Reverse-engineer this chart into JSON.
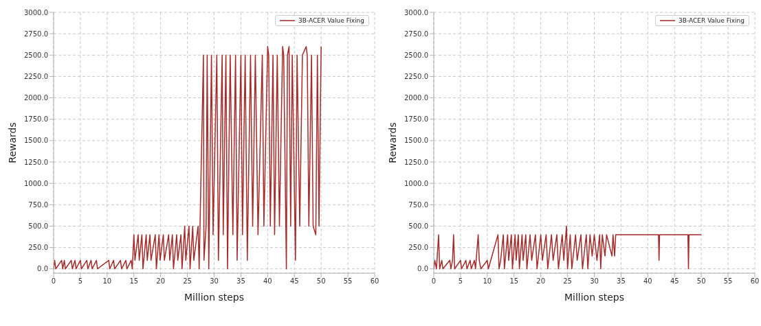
{
  "chart_data": [
    {
      "type": "line",
      "xlabel": "Million steps",
      "ylabel": "Rewards",
      "xlim": [
        0,
        60
      ],
      "xticks": [
        0,
        5,
        10,
        15,
        20,
        25,
        30,
        35,
        40,
        45,
        50,
        55,
        60
      ],
      "ylim": [
        -50,
        3000
      ],
      "yticks": [
        {
          "value": 0,
          "label": "0.0"
        },
        {
          "value": 250,
          "label": "250.0"
        },
        {
          "value": 500,
          "label": "500.0"
        },
        {
          "value": 750,
          "label": "750.0"
        },
        {
          "value": 1000,
          "label": "1000.0"
        },
        {
          "value": 1250,
          "label": "1250.0"
        },
        {
          "value": 1500,
          "label": "1500.0"
        },
        {
          "value": 1750,
          "label": "1750.0"
        },
        {
          "value": 2000,
          "label": "2000.0"
        },
        {
          "value": 2250,
          "label": "2250.0"
        },
        {
          "value": 2500,
          "label": "2500.0"
        },
        {
          "value": 2750,
          "label": "2750.0"
        },
        {
          "value": 3000,
          "label": "3000.0"
        }
      ],
      "grid": true,
      "legend": "top right",
      "line_style": "solid",
      "series": [
        {
          "name": "3B-ACER Value Fixing",
          "color": "#a52a2a",
          "x": [
            0,
            0.2,
            0.4,
            1.5,
            1.7,
            2,
            2.2,
            3.3,
            3.5,
            4,
            4.2,
            5,
            5.2,
            6.2,
            6.4,
            7,
            7.2,
            8,
            8.2,
            10.3,
            10.5,
            11.2,
            11.4,
            12.5,
            12.7,
            13.5,
            13.7,
            14.5,
            14.7,
            15,
            15.2,
            15.8,
            16,
            16.5,
            16.7,
            17.3,
            17.5,
            18,
            18.2,
            19,
            19.2,
            19.7,
            19.9,
            20.5,
            20.7,
            21.5,
            21.7,
            22.2,
            22.4,
            23,
            23.2,
            23.8,
            24,
            24.5,
            24.7,
            25.3,
            25.5,
            26,
            26.2,
            27,
            27.2,
            28,
            28.1,
            28.5,
            28.7,
            29,
            29.5,
            29.8,
            30.5,
            30.8,
            31.5,
            31.7,
            32.2,
            32.5,
            33,
            33.5,
            34,
            34.3,
            35,
            35.3,
            35.8,
            36.2,
            36.8,
            37.2,
            37.7,
            38.2,
            39,
            39.3,
            40,
            40.2,
            40.5,
            41,
            41.3,
            41.8,
            42.2,
            42.8,
            43,
            43.5,
            43.7,
            44,
            44.3,
            44.6,
            45.2,
            45.5,
            46,
            46.5,
            47.2,
            47.4,
            47.7,
            48.2,
            48.5,
            49,
            49.3,
            49.6,
            50
          ],
          "values": [
            0,
            100,
            0,
            100,
            0,
            100,
            0,
            100,
            0,
            100,
            0,
            100,
            0,
            100,
            0,
            100,
            0,
            100,
            0,
            100,
            0,
            100,
            0,
            100,
            0,
            100,
            0,
            100,
            0,
            400,
            100,
            400,
            100,
            400,
            0,
            400,
            100,
            400,
            100,
            400,
            0,
            400,
            100,
            400,
            100,
            400,
            100,
            400,
            0,
            400,
            100,
            400,
            0,
            500,
            100,
            500,
            0,
            500,
            100,
            500,
            0,
            2500,
            100,
            500,
            2500,
            0,
            2500,
            400,
            2500,
            100,
            2500,
            400,
            2500,
            0,
            2500,
            400,
            2500,
            100,
            2500,
            400,
            2500,
            100,
            2500,
            500,
            2500,
            400,
            2500,
            500,
            2600,
            2500,
            500,
            2500,
            400,
            2500,
            500,
            2600,
            2500,
            0,
            2500,
            2600,
            500,
            2500,
            100,
            2500,
            500,
            2500,
            2600,
            2500,
            500,
            2500,
            500,
            400,
            2500,
            500,
            2600
          ]
        }
      ]
    },
    {
      "type": "line",
      "xlabel": "Million steps",
      "ylabel": "Rewards",
      "xlim": [
        0,
        60
      ],
      "xticks": [
        0,
        5,
        10,
        15,
        20,
        25,
        30,
        35,
        40,
        45,
        50,
        55,
        60
      ],
      "ylim": [
        -50,
        3000
      ],
      "yticks": [
        {
          "value": 0,
          "label": "0.0"
        },
        {
          "value": 250,
          "label": "250.0"
        },
        {
          "value": 500,
          "label": "500.0"
        },
        {
          "value": 750,
          "label": "750.0"
        },
        {
          "value": 1000,
          "label": "1000.0"
        },
        {
          "value": 1250,
          "label": "1250.0"
        },
        {
          "value": 1500,
          "label": "1500.0"
        },
        {
          "value": 1750,
          "label": "1750.0"
        },
        {
          "value": 2000,
          "label": "2000.0"
        },
        {
          "value": 2250,
          "label": "2250.0"
        },
        {
          "value": 2500,
          "label": "2500.0"
        },
        {
          "value": 2750,
          "label": "2750.0"
        },
        {
          "value": 3000,
          "label": "3000.0"
        }
      ],
      "grid": true,
      "legend": "top right",
      "line_style": "solid",
      "series": [
        {
          "name": "3B-ACER Value Fixing",
          "color": "#a52a2a",
          "x": [
            0,
            0.2,
            0.5,
            0.9,
            1.1,
            1.5,
            1.7,
            3,
            3.2,
            3.5,
            3.7,
            3.9,
            5,
            5.2,
            6,
            6.2,
            6.8,
            7,
            7.6,
            7.8,
            8.3,
            8.5,
            8.8,
            10,
            10.2,
            12,
            12.2,
            12.5,
            13,
            13.2,
            13.8,
            14,
            14.5,
            14.7,
            15.2,
            15.4,
            15.8,
            16,
            16.5,
            16.7,
            17.2,
            17.4,
            18,
            18.3,
            19,
            19.3,
            20,
            20.3,
            21,
            21.3,
            22,
            22.3,
            23,
            23.3,
            24,
            24.3,
            24.8,
            25,
            25.5,
            25.8,
            26.5,
            26.8,
            27.5,
            27.8,
            28.5,
            28.8,
            29.2,
            29.6,
            30,
            30.5,
            31,
            31.2,
            31.5,
            32,
            32.3,
            33.3,
            33.5,
            33.8,
            34,
            42,
            42.1,
            42.2,
            47.5,
            47.6,
            47.7,
            50
          ],
          "values": [
            0,
            100,
            0,
            400,
            0,
            100,
            0,
            100,
            0,
            100,
            400,
            0,
            100,
            0,
            100,
            0,
            100,
            0,
            100,
            0,
            400,
            100,
            0,
            100,
            0,
            400,
            0,
            100,
            400,
            0,
            400,
            100,
            400,
            0,
            400,
            100,
            400,
            0,
            400,
            100,
            400,
            0,
            400,
            100,
            400,
            0,
            400,
            100,
            400,
            0,
            400,
            100,
            400,
            0,
            400,
            100,
            500,
            0,
            400,
            0,
            400,
            100,
            400,
            0,
            400,
            0,
            400,
            150,
            400,
            100,
            400,
            0,
            400,
            150,
            400,
            150,
            400,
            150,
            400,
            400,
            100,
            400,
            400,
            0,
            400,
            400
          ]
        }
      ]
    }
  ]
}
